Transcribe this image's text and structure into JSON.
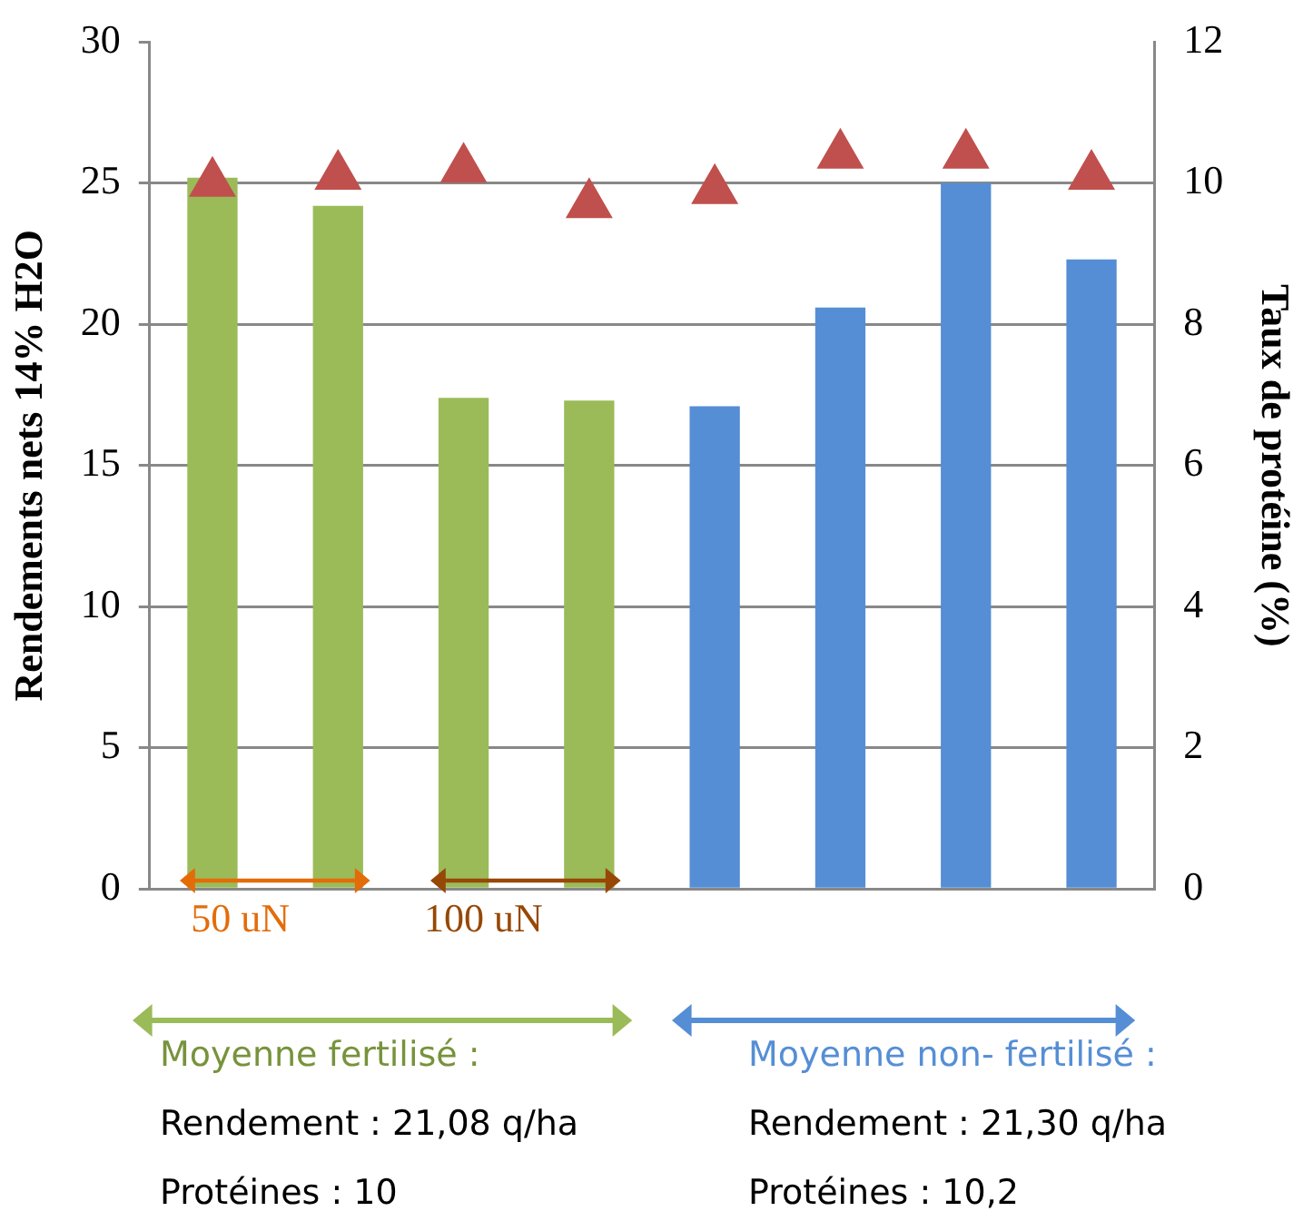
{
  "chart_data": {
    "type": "bar",
    "ylabel": "Rendements nets 14% H2O",
    "y2label": "Taux de protéine (%)",
    "categories": [
      null,
      null,
      null,
      null,
      null,
      null,
      null,
      null
    ],
    "series": [
      {
        "colors": [
          "#9bbb59",
          "#9bbb59",
          "#9bbb59",
          "#9bbb59",
          "#558ed5",
          "#558ed5",
          "#558ed5",
          "#558ed5"
        ],
        "values": [
          25.2,
          24.2,
          17.4,
          17.3,
          17.1,
          20.6,
          25.0,
          22.3
        ]
      },
      {
        "type": "scatter",
        "axis": "y2",
        "color": "#c0504d",
        "marker": "triangle",
        "values": [
          10.0,
          10.1,
          10.2,
          9.7,
          9.9,
          10.4,
          10.4,
          10.1
        ]
      }
    ],
    "ylim": [
      0,
      30
    ],
    "yticks": [
      0,
      5,
      10,
      15,
      20,
      25,
      30
    ],
    "y2lim": [
      0,
      12
    ],
    "y2ticks": [
      0,
      2,
      4,
      6,
      8,
      10,
      12
    ],
    "grid": "y",
    "legend": false,
    "annotations": [
      "50 uN",
      "100 uN",
      "Moyenne fertilisé :",
      "Rendement : 21,08 q/ha",
      "Protéines : 10",
      "Moyenne non- fertilisé :",
      "Rendement : 21,30 q/ha",
      "Protéines : 10,2"
    ]
  }
}
